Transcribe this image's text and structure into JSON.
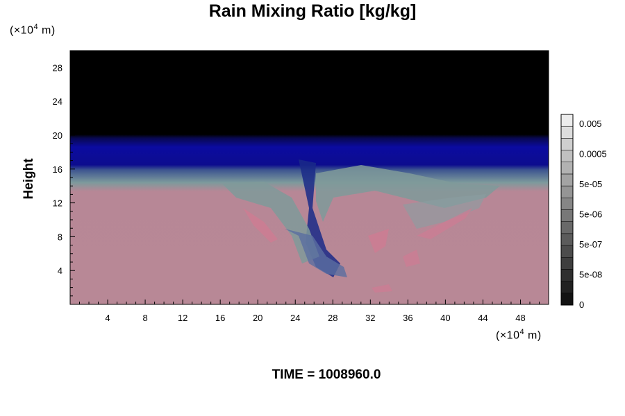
{
  "chart_data": {
    "type": "heatmap",
    "title": "Rain Mixing Ratio [kg/kg]",
    "ylabel": "Height",
    "y_unit_label": "(×10",
    "y_unit_exp": "4",
    "y_unit_suffix": " m)",
    "x_unit_label": "(×10",
    "x_unit_exp": "4",
    "x_unit_suffix": " m)",
    "xlim": [
      0,
      51
    ],
    "ylim": [
      0,
      30
    ],
    "x_ticks": [
      4,
      8,
      12,
      16,
      20,
      24,
      28,
      32,
      36,
      40,
      44,
      48
    ],
    "y_ticks": [
      4,
      8,
      12,
      16,
      20,
      24,
      28
    ],
    "colorbar": {
      "labels": [
        "0.005",
        "0.0005",
        "5e-05",
        "5e-06",
        "5e-07",
        "5e-08",
        "0"
      ]
    },
    "time_label": "TIME = 1008960.0",
    "colors": {
      "background_upper": "#000000",
      "band_blue": "#0a0a8c",
      "lower_field": "#b88896",
      "plume": "#7f9a9a"
    }
  }
}
